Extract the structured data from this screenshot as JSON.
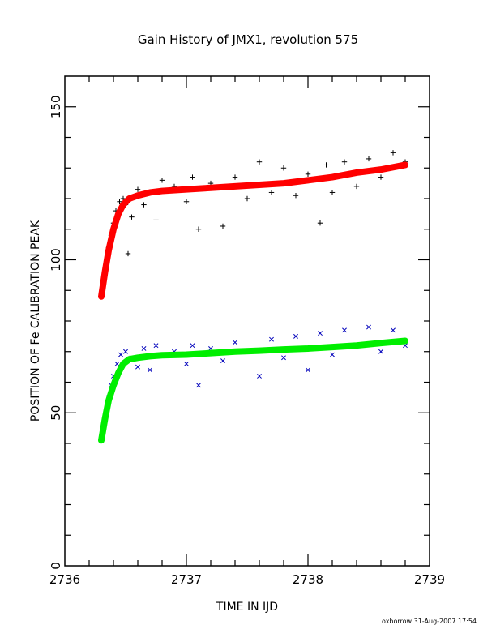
{
  "chart_data": {
    "type": "scatter",
    "title": "Gain History of JMX1, revolution 575",
    "xlabel": "TIME IN IJD",
    "ylabel": "POSITION OF Fe CALIBRATION PEAK",
    "xlim": [
      2736,
      2739
    ],
    "ylim": [
      0,
      160
    ],
    "x_ticks": [
      2736,
      2737,
      2738,
      2739
    ],
    "x_tick_labels": [
      "2736",
      "2737",
      "2738",
      "2739"
    ],
    "y_ticks": [
      0,
      50,
      100,
      150
    ],
    "y_tick_labels": [
      "0",
      "50",
      "100",
      "150"
    ],
    "grid": false,
    "series": [
      {
        "marker": "plus",
        "color": "#000000",
        "x": [
          2736.3,
          2736.32,
          2736.34,
          2736.36,
          2736.38,
          2736.4,
          2736.42,
          2736.45,
          2736.48,
          2736.5,
          2736.52,
          2736.55,
          2736.58,
          2736.6,
          2736.65,
          2736.7,
          2736.75,
          2736.8,
          2736.9,
          2737.0,
          2737.05,
          2737.1,
          2737.2,
          2737.3,
          2737.4,
          2737.5,
          2737.6,
          2737.7,
          2737.8,
          2737.9,
          2738.0,
          2738.1,
          2738.15,
          2738.2,
          2738.3,
          2738.4,
          2738.5,
          2738.6,
          2738.7,
          2738.8
        ],
        "y": [
          89,
          94,
          99,
          104,
          108,
          112,
          116,
          119,
          120,
          118,
          102,
          114,
          121,
          123,
          118,
          122,
          113,
          126,
          124,
          119,
          127,
          110,
          125,
          111,
          127,
          120,
          132,
          122,
          130,
          121,
          128,
          112,
          131,
          122,
          132,
          124,
          133,
          127,
          135,
          132
        ]
      },
      {
        "marker": "line",
        "color": "#ff0000",
        "x": [
          2736.3,
          2736.33,
          2736.36,
          2736.4,
          2736.44,
          2736.48,
          2736.53,
          2736.6,
          2736.7,
          2736.8,
          2737.0,
          2737.2,
          2737.4,
          2737.6,
          2737.8,
          2738.0,
          2738.2,
          2738.4,
          2738.6,
          2738.8
        ],
        "y": [
          88,
          96,
          103,
          110,
          115,
          118,
          120,
          121,
          122,
          122.5,
          123,
          123.5,
          124,
          124.5,
          125,
          126,
          127,
          128.5,
          129.5,
          131
        ]
      },
      {
        "marker": "cross",
        "color": "#0000bb",
        "x": [
          2736.3,
          2736.32,
          2736.34,
          2736.36,
          2736.38,
          2736.4,
          2736.43,
          2736.46,
          2736.5,
          2736.55,
          2736.6,
          2736.65,
          2736.7,
          2736.75,
          2736.8,
          2736.9,
          2737.0,
          2737.05,
          2737.1,
          2737.2,
          2737.3,
          2737.4,
          2737.5,
          2737.6,
          2737.7,
          2737.8,
          2737.9,
          2738.0,
          2738.1,
          2738.2,
          2738.3,
          2738.4,
          2738.5,
          2738.6,
          2738.7,
          2738.8
        ],
        "y": [
          41,
          45,
          50,
          55,
          59,
          62,
          66,
          69,
          70,
          68,
          65,
          71,
          64,
          72,
          69,
          70,
          66,
          72,
          59,
          71,
          67,
          73,
          70,
          62,
          74,
          68,
          75,
          64,
          76,
          69,
          77,
          72,
          78,
          70,
          77,
          72
        ]
      },
      {
        "marker": "line",
        "color": "#00ee00",
        "x": [
          2736.3,
          2736.33,
          2736.36,
          2736.4,
          2736.44,
          2736.48,
          2736.53,
          2736.6,
          2736.7,
          2736.8,
          2737.0,
          2737.2,
          2737.4,
          2737.6,
          2737.8,
          2738.0,
          2738.2,
          2738.4,
          2738.6,
          2738.8
        ],
        "y": [
          41,
          48,
          54,
          59,
          63,
          66,
          67.5,
          68,
          68.5,
          68.8,
          69,
          69.5,
          70,
          70.3,
          70.7,
          71,
          71.5,
          72,
          72.8,
          73.5
        ]
      }
    ]
  },
  "footer_stamp": "oxborrow 31-Aug-2007 17:54"
}
